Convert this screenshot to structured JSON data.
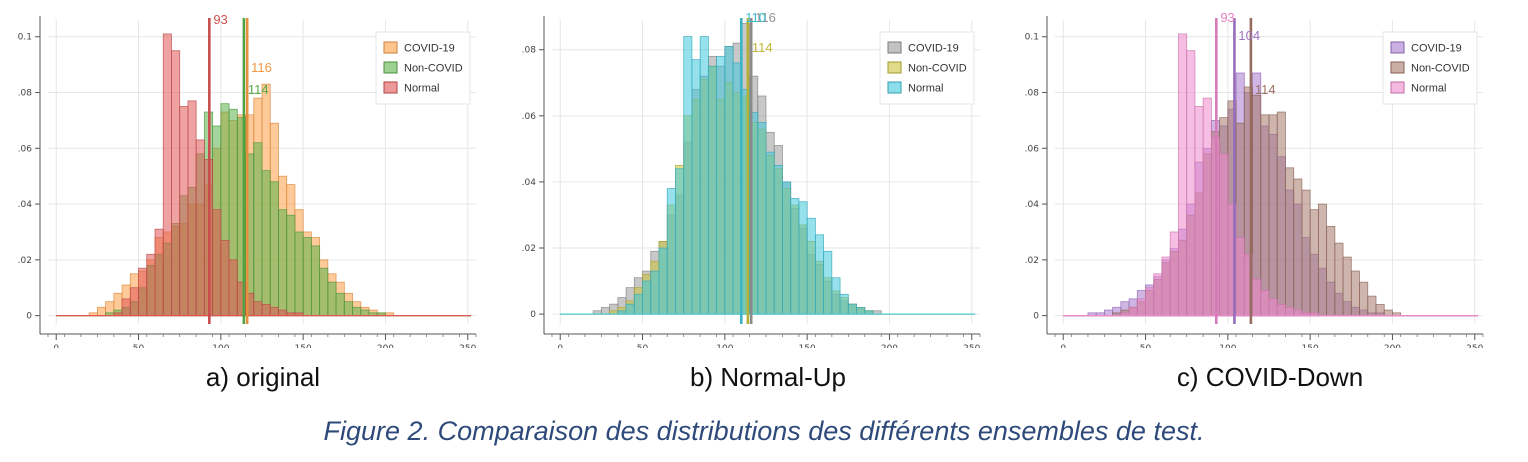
{
  "figure_caption": "Figure 2. Comparaison des distributions des différents ensembles de test.",
  "chart_data": [
    {
      "type": "bar",
      "subtitle": "a) original",
      "x_ticks": [
        0,
        50,
        100,
        150,
        200,
        250
      ],
      "y_ticks": [
        "0",
        "0.02",
        "0.04",
        "0.06",
        "0.08",
        "0.1"
      ],
      "xlim": [
        -5,
        255
      ],
      "ylim": [
        -0.003,
        0.106
      ],
      "bin_start": 20,
      "bin_width": 5,
      "legend_position": "top-right",
      "series": [
        {
          "name": "COVID-19",
          "color": "#ff9f45",
          "mean": 116,
          "values": [
            0.001,
            0.003,
            0.005,
            0.008,
            0.011,
            0.015,
            0.016,
            0.02,
            0.028,
            0.03,
            0.032,
            0.033,
            0.04,
            0.04,
            0.047,
            0.06,
            0.073,
            0.07,
            0.072,
            0.072,
            0.078,
            0.083,
            0.069,
            0.05,
            0.047,
            0.038,
            0.03,
            0.028,
            0.02,
            0.015,
            0.012,
            0.008,
            0.005,
            0.003,
            0.002,
            0.001,
            0.001
          ]
        },
        {
          "name": "Non-COVID",
          "color": "#5bb34a",
          "mean": 114,
          "values": [
            0.0,
            0.0,
            0.001,
            0.002,
            0.003,
            0.005,
            0.01,
            0.018,
            0.022,
            0.026,
            0.033,
            0.043,
            0.046,
            0.058,
            0.073,
            0.068,
            0.076,
            0.074,
            0.071,
            0.058,
            0.062,
            0.052,
            0.048,
            0.038,
            0.036,
            0.03,
            0.028,
            0.025,
            0.017,
            0.012,
            0.008,
            0.005,
            0.003,
            0.002,
            0.001,
            0.001,
            0.0
          ]
        },
        {
          "name": "Normal",
          "color": "#e05555",
          "mean": 93,
          "values": [
            0.0,
            0.0,
            0.0,
            0.001,
            0.006,
            0.01,
            0.017,
            0.022,
            0.031,
            0.101,
            0.095,
            0.075,
            0.077,
            0.063,
            0.056,
            0.038,
            0.027,
            0.02,
            0.012,
            0.008,
            0.005,
            0.004,
            0.003,
            0.002,
            0.001,
            0.001,
            0.0,
            0.0,
            0.0,
            0.0,
            0.0,
            0.0,
            0.0,
            0.0,
            0.0,
            0.0,
            0.0
          ]
        }
      ]
    },
    {
      "type": "bar",
      "subtitle": "b) Normal-Up",
      "x_ticks": [
        0,
        50,
        100,
        150,
        200,
        250
      ],
      "y_ticks": [
        "0",
        "0.02",
        "0.04",
        "0.06",
        "0.08"
      ],
      "xlim": [
        -5,
        255
      ],
      "ylim": [
        -0.003,
        0.089
      ],
      "bin_start": 20,
      "bin_width": 5,
      "legend_position": "top-right",
      "series": [
        {
          "name": "COVID-19",
          "color": "#9a9a9a",
          "mean": 116,
          "values": [
            0.001,
            0.002,
            0.003,
            0.005,
            0.008,
            0.011,
            0.013,
            0.019,
            0.022,
            0.03,
            0.036,
            0.052,
            0.068,
            0.072,
            0.078,
            0.075,
            0.081,
            0.082,
            0.088,
            0.072,
            0.066,
            0.055,
            0.051,
            0.04,
            0.032,
            0.026,
            0.018,
            0.015,
            0.01,
            0.006,
            0.004,
            0.003,
            0.002,
            0.001,
            0.001,
            0.0,
            0.0
          ]
        },
        {
          "name": "Non-COVID",
          "color": "#c9c33a",
          "mean": 114,
          "values": [
            0.0,
            0.0,
            0.001,
            0.002,
            0.004,
            0.008,
            0.012,
            0.016,
            0.022,
            0.033,
            0.045,
            0.06,
            0.065,
            0.071,
            0.075,
            0.065,
            0.07,
            0.067,
            0.066,
            0.058,
            0.056,
            0.048,
            0.044,
            0.038,
            0.033,
            0.027,
            0.022,
            0.016,
            0.011,
            0.007,
            0.005,
            0.003,
            0.002,
            0.001,
            0.0,
            0.0,
            0.0
          ]
        },
        {
          "name": "Normal",
          "color": "#40c8dc",
          "mean": 110,
          "values": [
            0.0,
            0.0,
            0.0,
            0.001,
            0.003,
            0.006,
            0.01,
            0.013,
            0.02,
            0.038,
            0.044,
            0.084,
            0.077,
            0.084,
            0.075,
            0.078,
            0.081,
            0.076,
            0.068,
            0.061,
            0.058,
            0.049,
            0.045,
            0.04,
            0.035,
            0.034,
            0.029,
            0.024,
            0.019,
            0.011,
            0.006,
            0.003,
            0.002,
            0.001,
            0.0,
            0.0,
            0.0
          ]
        }
      ]
    },
    {
      "type": "bar",
      "subtitle": "c) COVID-Down",
      "x_ticks": [
        0,
        50,
        100,
        150,
        200,
        250
      ],
      "y_ticks": [
        "0",
        "0.02",
        "0.04",
        "0.06",
        "0.08",
        "0.1"
      ],
      "xlim": [
        -5,
        255
      ],
      "ylim": [
        -0.003,
        0.106
      ],
      "bin_start": 15,
      "bin_width": 5,
      "legend_position": "top-right",
      "series": [
        {
          "name": "COVID-19",
          "color": "#a77ad0",
          "mean": 104,
          "values": [
            0.001,
            0.001,
            0.002,
            0.003,
            0.005,
            0.006,
            0.009,
            0.011,
            0.014,
            0.02,
            0.024,
            0.031,
            0.04,
            0.055,
            0.06,
            0.07,
            0.068,
            0.074,
            0.087,
            0.08,
            0.087,
            0.068,
            0.065,
            0.057,
            0.045,
            0.04,
            0.028,
            0.022,
            0.017,
            0.012,
            0.008,
            0.005,
            0.003,
            0.002,
            0.001,
            0.001,
            0.0,
            0.0
          ]
        },
        {
          "name": "Non-COVID",
          "color": "#a6786a",
          "mean": 114,
          "values": [
            0.0,
            0.0,
            0.0,
            0.001,
            0.002,
            0.003,
            0.005,
            0.009,
            0.013,
            0.019,
            0.023,
            0.027,
            0.036,
            0.044,
            0.058,
            0.066,
            0.071,
            0.077,
            0.069,
            0.082,
            0.079,
            0.072,
            0.072,
            0.073,
            0.053,
            0.049,
            0.045,
            0.038,
            0.04,
            0.032,
            0.026,
            0.021,
            0.016,
            0.012,
            0.007,
            0.004,
            0.002,
            0.001
          ]
        },
        {
          "name": "Normal",
          "color": "#ee88cc",
          "mean": 93,
          "values": [
            0.0,
            0.0,
            0.0,
            0.0,
            0.001,
            0.003,
            0.006,
            0.01,
            0.015,
            0.021,
            0.03,
            0.101,
            0.095,
            0.075,
            0.078,
            0.064,
            0.058,
            0.04,
            0.028,
            0.022,
            0.013,
            0.009,
            0.006,
            0.004,
            0.003,
            0.002,
            0.001,
            0.001,
            0.0,
            0.0,
            0.0,
            0.0,
            0.0,
            0.0,
            0.0,
            0.0,
            0.0,
            0.0
          ]
        }
      ]
    }
  ]
}
